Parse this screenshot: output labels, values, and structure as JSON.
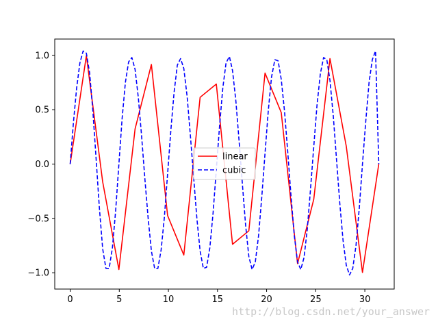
{
  "chart_data": {
    "type": "line",
    "title": "",
    "xlabel": "",
    "ylabel": "",
    "xlim": [
      -1.57,
      32.99
    ],
    "ylim": [
      -1.15,
      1.15
    ],
    "x_ticks": [
      0,
      5,
      10,
      15,
      20,
      25,
      30
    ],
    "x_tick_labels": [
      "0",
      "5",
      "10",
      "15",
      "20",
      "25",
      "30"
    ],
    "y_ticks": [
      -1.0,
      -0.5,
      0.0,
      0.5,
      1.0
    ],
    "y_tick_labels": [
      "−1.0",
      "−0.5",
      "0.0",
      "0.5",
      "1.0"
    ],
    "grid": false,
    "legend_position": "center",
    "series": [
      {
        "name": "linear",
        "color": "#ff0000",
        "style": "solid",
        "x": [
          0,
          1.65,
          3.31,
          4.96,
          6.61,
          8.27,
          9.92,
          11.57,
          13.23,
          14.88,
          16.53,
          18.19,
          19.84,
          21.49,
          23.15,
          24.8,
          26.45,
          28.11,
          29.76,
          31.42
        ],
        "y": [
          0.0,
          0.997,
          -0.164,
          -0.97,
          0.324,
          0.916,
          -0.474,
          -0.837,
          0.614,
          0.736,
          -0.738,
          -0.614,
          0.837,
          0.474,
          -0.916,
          -0.324,
          0.97,
          0.164,
          -0.997,
          0.0
        ]
      },
      {
        "name": "cubic",
        "color": "#0000ff",
        "style": "dashed",
        "x": [
          0,
          0.33,
          0.66,
          0.99,
          1.32,
          1.65,
          1.98,
          2.31,
          2.64,
          2.97,
          3.31,
          3.64,
          3.97,
          4.3,
          4.63,
          4.96,
          5.29,
          5.62,
          5.95,
          6.28,
          6.61,
          6.94,
          7.27,
          7.6,
          7.94,
          8.27,
          8.6,
          8.93,
          9.26,
          9.59,
          9.92,
          10.25,
          10.58,
          10.91,
          11.24,
          11.57,
          11.91,
          12.24,
          12.57,
          12.9,
          13.23,
          13.56,
          13.89,
          14.22,
          14.55,
          14.88,
          15.21,
          15.54,
          15.87,
          16.21,
          16.53,
          16.87,
          17.2,
          17.53,
          17.86,
          18.19,
          18.52,
          18.85,
          19.18,
          19.51,
          19.84,
          20.17,
          20.5,
          20.84,
          21.17,
          21.49,
          21.83,
          22.16,
          22.49,
          22.82,
          23.15,
          23.48,
          23.81,
          24.14,
          24.47,
          24.8,
          25.13,
          25.47,
          25.8,
          26.13,
          26.45,
          26.79,
          27.12,
          27.45,
          27.78,
          28.11,
          28.44,
          28.77,
          29.1,
          29.44,
          29.76,
          30.1,
          30.43,
          30.76,
          31.09,
          31.42
        ],
        "y": [
          0.0,
          0.38,
          0.7,
          0.93,
          1.04,
          1.02,
          0.84,
          0.49,
          0.05,
          -0.4,
          -0.78,
          -0.96,
          -0.96,
          -0.77,
          -0.43,
          0.0,
          0.42,
          0.75,
          0.94,
          0.98,
          0.87,
          0.61,
          0.26,
          -0.13,
          -0.5,
          -0.8,
          -0.96,
          -0.96,
          -0.79,
          -0.49,
          -0.09,
          0.31,
          0.66,
          0.91,
          0.97,
          0.88,
          0.62,
          0.26,
          -0.12,
          -0.5,
          -0.8,
          -0.96,
          -0.95,
          -0.77,
          -0.45,
          -0.05,
          0.35,
          0.7,
          0.93,
          0.99,
          0.86,
          0.58,
          0.21,
          -0.18,
          -0.56,
          -0.85,
          -0.97,
          -0.9,
          -0.66,
          -0.3,
          0.1,
          0.49,
          0.8,
          0.96,
          0.95,
          0.78,
          0.48,
          0.1,
          -0.3,
          -0.66,
          -0.9,
          -0.97,
          -0.86,
          -0.6,
          -0.23,
          0.16,
          0.54,
          0.83,
          0.98,
          0.96,
          0.77,
          0.44,
          0.04,
          -0.36,
          -0.7,
          -0.93,
          -1.02,
          -0.96,
          -0.75,
          -0.4,
          0.0,
          0.4,
          0.75,
          0.96,
          1.04,
          0.0
        ]
      }
    ],
    "legend": [
      {
        "label": "linear",
        "color": "#ff0000",
        "style": "solid"
      },
      {
        "label": "cubic",
        "color": "#0000ff",
        "style": "dashed"
      }
    ]
  },
  "watermark": "http://blog.csdn.net/your_answer"
}
